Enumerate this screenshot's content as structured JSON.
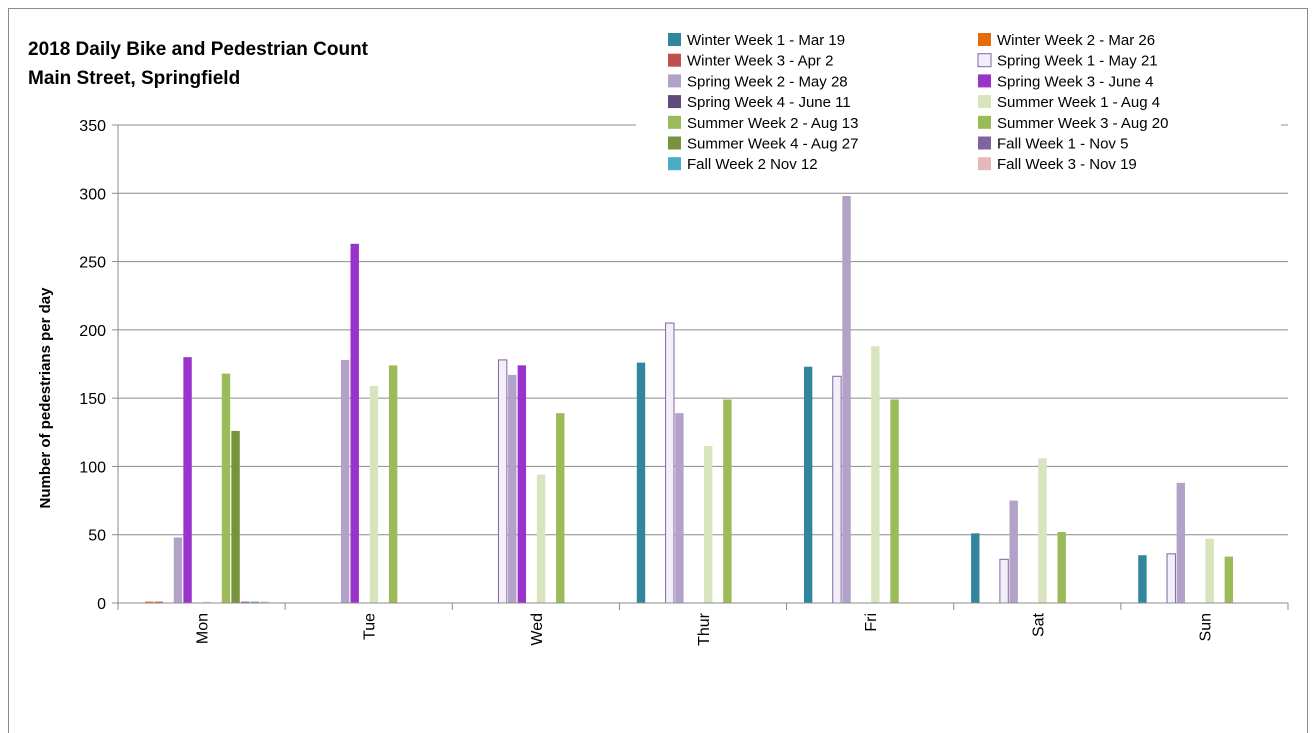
{
  "chart_data": {
    "type": "bar",
    "title": "2018 Daily Bike and Pedestrian Count",
    "subtitle": "Main Street, Springfield",
    "xlabel": "",
    "ylabel": "Number of pedestrians per day",
    "ylim": [
      0,
      350
    ],
    "yticks": [
      0,
      50,
      100,
      150,
      200,
      250,
      300,
      350
    ],
    "grid": true,
    "legend_position": "top-right",
    "categories": [
      "Mon",
      "Tue",
      "Wed",
      "Thur",
      "Fri",
      "Sat",
      "Sun"
    ],
    "series": [
      {
        "name": "Winter Week 1 - Mar 19",
        "color": "#31859C",
        "values": [
          0,
          0,
          0,
          176,
          173,
          51,
          35
        ]
      },
      {
        "name": "Winter Week 2 - Mar 26",
        "color": "#E46C0A",
        "values": [
          1,
          0,
          0,
          0,
          0,
          0,
          0
        ]
      },
      {
        "name": "Winter Week 3 - Apr 2",
        "color": "#C0504D",
        "values": [
          1,
          0,
          0,
          0,
          0,
          0,
          0
        ]
      },
      {
        "name": "Spring Week 1 - May 21",
        "color": "#F3EFF8",
        "values": [
          0,
          0,
          178,
          205,
          166,
          32,
          36
        ]
      },
      {
        "name": "Spring Week 2 - May 28",
        "color": "#B3A2C7",
        "values": [
          48,
          178,
          167,
          139,
          298,
          75,
          88
        ]
      },
      {
        "name": "Spring Week 3 - June 4",
        "color": "#9933CC",
        "values": [
          180,
          263,
          174,
          0,
          0,
          0,
          0
        ]
      },
      {
        "name": "Spring Week 4 - June 11",
        "color": "#604A7B",
        "values": [
          0,
          0,
          0,
          0,
          0,
          0,
          0
        ]
      },
      {
        "name": "Summer Week 1 - Aug 4",
        "color": "#D7E4BD",
        "values": [
          1,
          159,
          94,
          115,
          188,
          106,
          47
        ]
      },
      {
        "name": "Summer Week 2 - Aug 13",
        "color": "#9BBB59",
        "values": [
          0,
          0,
          0,
          0,
          0,
          0,
          0
        ]
      },
      {
        "name": "Summer Week 3 - Aug 20",
        "color": "#9BBB59",
        "values": [
          168,
          174,
          139,
          149,
          149,
          52,
          34
        ]
      },
      {
        "name": "Summer Week 4 - Aug 27",
        "color": "#77933C",
        "values": [
          126,
          0,
          0,
          0,
          0,
          0,
          0
        ]
      },
      {
        "name": "Fall Week 1 - Nov 5",
        "color": "#8064A2",
        "values": [
          1,
          0,
          0,
          0,
          0,
          0,
          0
        ]
      },
      {
        "name": "Fall Week 2 Nov 12",
        "color": "#4BACC6",
        "values": [
          1,
          0,
          0,
          0,
          0,
          0,
          0
        ]
      },
      {
        "name": "Fall Week 3 - Nov 19",
        "color": "#E6B9B8",
        "values": [
          1,
          0,
          0,
          0,
          0,
          0,
          0
        ]
      }
    ]
  }
}
